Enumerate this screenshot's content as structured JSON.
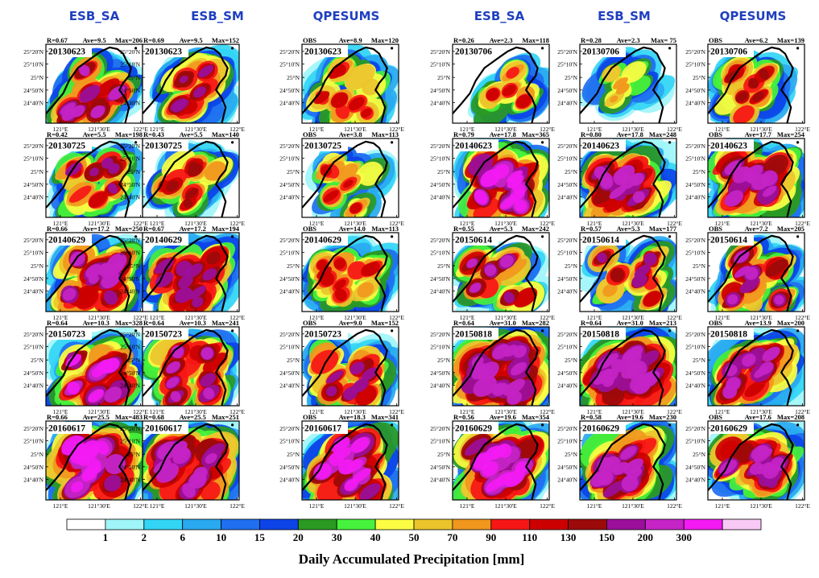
{
  "chart_data": {
    "type": "heatmap",
    "column_headers": [
      "ESB_SA",
      "ESB_SM",
      "QPESUMS",
      "ESB_SA",
      "ESB_SM",
      "QPESUMS"
    ],
    "x_tick_labels": [
      "121°E",
      "121°30'E",
      "122°E"
    ],
    "y_tick_labels": [
      "25°20'N",
      "25°10'N",
      "25°N",
      "24°50'N",
      "24°40'N"
    ],
    "panels": [
      {
        "row": 0,
        "col": 0,
        "date": "20130623",
        "label": "R=0.67",
        "ave": "Ave=9.5",
        "max": "Max=206"
      },
      {
        "row": 0,
        "col": 1,
        "date": "20130623",
        "label": "R=0.69",
        "ave": "Ave=9.5",
        "max": "Max=152"
      },
      {
        "row": 0,
        "col": 2,
        "date": "20130623",
        "label": "OBS",
        "ave": "Ave=8.9",
        "max": "Max=120"
      },
      {
        "row": 0,
        "col": 3,
        "date": "20130706",
        "label": "R=0.26",
        "ave": "Ave=2.3",
        "max": "Max=118"
      },
      {
        "row": 0,
        "col": 4,
        "date": "20130706",
        "label": "R=0.28",
        "ave": "Ave=2.3",
        "max": "Max= 75"
      },
      {
        "row": 0,
        "col": 5,
        "date": "20130706",
        "label": "OBS",
        "ave": "Ave=6.2",
        "max": "Max=139"
      },
      {
        "row": 1,
        "col": 0,
        "date": "20130725",
        "label": "R=0.42",
        "ave": "Ave=5.5",
        "max": "Max=198"
      },
      {
        "row": 1,
        "col": 1,
        "date": "20130725",
        "label": "R=0.43",
        "ave": "Ave=5.5",
        "max": "Max=140"
      },
      {
        "row": 1,
        "col": 2,
        "date": "20130725",
        "label": "OBS",
        "ave": "Ave=3.8",
        "max": "Max=113"
      },
      {
        "row": 1,
        "col": 3,
        "date": "20140623",
        "label": "R=0.79",
        "ave": "Ave=17.8",
        "max": "Max=365"
      },
      {
        "row": 1,
        "col": 4,
        "date": "20140623",
        "label": "R=0.80",
        "ave": "Ave=17.8",
        "max": "Max=248"
      },
      {
        "row": 1,
        "col": 5,
        "date": "20140623",
        "label": "OBS",
        "ave": "Ave=17.7",
        "max": "Max=254"
      },
      {
        "row": 2,
        "col": 0,
        "date": "20140629",
        "label": "R=0.66",
        "ave": "Ave=17.2",
        "max": "Max=250"
      },
      {
        "row": 2,
        "col": 1,
        "date": "20140629",
        "label": "R=0.67",
        "ave": "Ave=17.2",
        "max": "Max=194"
      },
      {
        "row": 2,
        "col": 2,
        "date": "20140629",
        "label": "OBS",
        "ave": "Ave=14.0",
        "max": "Max=113"
      },
      {
        "row": 2,
        "col": 3,
        "date": "20150614",
        "label": "R=0.55",
        "ave": "Ave=5.3",
        "max": "Max=242"
      },
      {
        "row": 2,
        "col": 4,
        "date": "20150614",
        "label": "R=0.57",
        "ave": "Ave=5.3",
        "max": "Max=177"
      },
      {
        "row": 2,
        "col": 5,
        "date": "20150614",
        "label": "OBS",
        "ave": "Ave=7.2",
        "max": "Max=205"
      },
      {
        "row": 3,
        "col": 0,
        "date": "20150723",
        "label": "R=0.64",
        "ave": "Ave=10.3",
        "max": "Max=328"
      },
      {
        "row": 3,
        "col": 1,
        "date": "20150723",
        "label": "R=0.64",
        "ave": "Ave=10.3",
        "max": "Max=241"
      },
      {
        "row": 3,
        "col": 2,
        "date": "20150723",
        "label": "OBS",
        "ave": "Ave=9.0",
        "max": "Max=152"
      },
      {
        "row": 3,
        "col": 3,
        "date": "20150818",
        "label": "R=0.64",
        "ave": "Ave=31.0",
        "max": "Max=282"
      },
      {
        "row": 3,
        "col": 4,
        "date": "20150818",
        "label": "R=0.64",
        "ave": "Ave=31.0",
        "max": "Max=213"
      },
      {
        "row": 3,
        "col": 5,
        "date": "20150818",
        "label": "OBS",
        "ave": "Ave=13.9",
        "max": "Max=200"
      },
      {
        "row": 4,
        "col": 0,
        "date": "20160617",
        "label": "R=0.66",
        "ave": "Ave=25.5",
        "max": "Max=483"
      },
      {
        "row": 4,
        "col": 1,
        "date": "20160617",
        "label": "R=0.68",
        "ave": "Ave=25.5",
        "max": "Max=251"
      },
      {
        "row": 4,
        "col": 2,
        "date": "20160617",
        "label": "OBS",
        "ave": "Ave=18.3",
        "max": "Max=341"
      },
      {
        "row": 4,
        "col": 3,
        "date": "20160629",
        "label": "R=0.56",
        "ave": "Ave=19.6",
        "max": "Max=354"
      },
      {
        "row": 4,
        "col": 4,
        "date": "20160629",
        "label": "R=0.58",
        "ave": "Ave=19.6",
        "max": "Max=230"
      },
      {
        "row": 4,
        "col": 5,
        "date": "20160629",
        "label": "OBS",
        "ave": "Ave=17.6",
        "max": "Max=208"
      }
    ],
    "colorbar": {
      "title": "Daily Accumulated Precipitation [mm]",
      "levels": [
        "1",
        "2",
        "6",
        "10",
        "15",
        "20",
        "30",
        "40",
        "50",
        "70",
        "90",
        "110",
        "130",
        "150",
        "200",
        "300"
      ],
      "colors": [
        "#ffffff",
        "#9ff5f8",
        "#33d5f5",
        "#29a9f0",
        "#1f6ff0",
        "#0c44e8",
        "#2a9a23",
        "#47f23c",
        "#fcfd43",
        "#ebc42c",
        "#f1971e",
        "#f71616",
        "#cc0000",
        "#9c0a0a",
        "#9b0f9b",
        "#c624c6",
        "#f31af3",
        "#f9c9f5"
      ]
    },
    "grid": false,
    "legend": "bottom"
  }
}
